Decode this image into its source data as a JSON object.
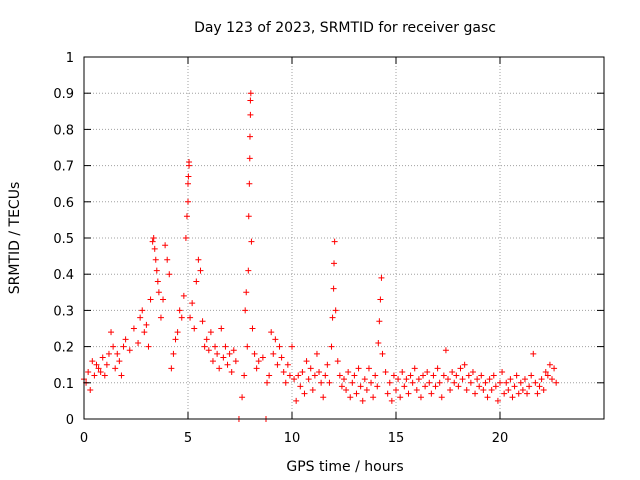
{
  "chart_data": {
    "type": "scatter",
    "title": "Day 123 of 2023, SRMTID for receiver gasc",
    "xlabel": "GPS time / hours",
    "ylabel": "SRMTID / TECUs",
    "xlim": [
      0,
      25
    ],
    "ylim": [
      0,
      1
    ],
    "x_ticks": [
      0,
      5,
      10,
      15,
      20
    ],
    "x_tick_labels": [
      "0",
      "5",
      "10",
      "15",
      "20"
    ],
    "y_ticks": [
      0,
      0.1,
      0.2,
      0.3,
      0.4,
      0.5,
      0.6,
      0.7,
      0.8,
      0.9,
      1
    ],
    "y_tick_labels": [
      "0",
      "0.1",
      "0.2",
      "0.3",
      "0.4",
      "0.5",
      "0.6",
      "0.7",
      "0.8",
      "0.9",
      "1"
    ],
    "grid": true,
    "marker": "+",
    "marker_color": "#ff0000",
    "series": [
      {
        "name": "SRMTID",
        "points": [
          [
            0.0,
            0.11
          ],
          [
            0.1,
            0.1
          ],
          [
            0.2,
            0.13
          ],
          [
            0.3,
            0.08
          ],
          [
            0.4,
            0.16
          ],
          [
            0.5,
            0.12
          ],
          [
            0.6,
            0.15
          ],
          [
            0.7,
            0.14
          ],
          [
            0.8,
            0.13
          ],
          [
            0.9,
            0.17
          ],
          [
            1.0,
            0.12
          ],
          [
            1.1,
            0.15
          ],
          [
            1.2,
            0.18
          ],
          [
            1.3,
            0.24
          ],
          [
            1.4,
            0.2
          ],
          [
            1.5,
            0.14
          ],
          [
            1.6,
            0.18
          ],
          [
            1.7,
            0.16
          ],
          [
            1.8,
            0.12
          ],
          [
            1.9,
            0.2
          ],
          [
            2.0,
            0.22
          ],
          [
            2.2,
            0.19
          ],
          [
            2.4,
            0.25
          ],
          [
            2.6,
            0.21
          ],
          [
            2.7,
            0.28
          ],
          [
            2.8,
            0.3
          ],
          [
            2.9,
            0.24
          ],
          [
            3.0,
            0.26
          ],
          [
            3.1,
            0.2
          ],
          [
            3.2,
            0.33
          ],
          [
            3.3,
            0.49
          ],
          [
            3.35,
            0.5
          ],
          [
            3.4,
            0.47
          ],
          [
            3.45,
            0.44
          ],
          [
            3.5,
            0.41
          ],
          [
            3.55,
            0.38
          ],
          [
            3.6,
            0.35
          ],
          [
            3.7,
            0.28
          ],
          [
            3.8,
            0.33
          ],
          [
            3.9,
            0.48
          ],
          [
            4.0,
            0.44
          ],
          [
            4.1,
            0.4
          ],
          [
            4.2,
            0.14
          ],
          [
            4.3,
            0.18
          ],
          [
            4.4,
            0.22
          ],
          [
            4.5,
            0.24
          ],
          [
            4.6,
            0.3
          ],
          [
            4.7,
            0.28
          ],
          [
            4.8,
            0.34
          ],
          [
            4.9,
            0.5
          ],
          [
            4.95,
            0.56
          ],
          [
            5.0,
            0.6
          ],
          [
            5.0,
            0.65
          ],
          [
            5.02,
            0.67
          ],
          [
            5.05,
            0.7
          ],
          [
            5.05,
            0.71
          ],
          [
            5.1,
            0.28
          ],
          [
            5.2,
            0.32
          ],
          [
            5.3,
            0.25
          ],
          [
            5.4,
            0.38
          ],
          [
            5.5,
            0.44
          ],
          [
            5.6,
            0.41
          ],
          [
            5.7,
            0.27
          ],
          [
            5.8,
            0.2
          ],
          [
            5.9,
            0.22
          ],
          [
            6.0,
            0.19
          ],
          [
            6.1,
            0.24
          ],
          [
            6.2,
            0.16
          ],
          [
            6.3,
            0.2
          ],
          [
            6.4,
            0.18
          ],
          [
            6.5,
            0.14
          ],
          [
            6.6,
            0.25
          ],
          [
            6.7,
            0.17
          ],
          [
            6.8,
            0.2
          ],
          [
            6.9,
            0.15
          ],
          [
            7.0,
            0.18
          ],
          [
            7.1,
            0.13
          ],
          [
            7.2,
            0.19
          ],
          [
            7.3,
            0.16
          ],
          [
            7.45,
            0.0
          ],
          [
            7.6,
            0.06
          ],
          [
            7.7,
            0.12
          ],
          [
            7.75,
            0.3
          ],
          [
            7.8,
            0.35
          ],
          [
            7.85,
            0.2
          ],
          [
            7.9,
            0.41
          ],
          [
            7.92,
            0.56
          ],
          [
            7.95,
            0.65
          ],
          [
            7.97,
            0.72
          ],
          [
            7.98,
            0.78
          ],
          [
            8.0,
            0.84
          ],
          [
            8.0,
            0.88
          ],
          [
            8.02,
            0.9
          ],
          [
            8.05,
            0.49
          ],
          [
            8.1,
            0.25
          ],
          [
            8.2,
            0.18
          ],
          [
            8.3,
            0.14
          ],
          [
            8.4,
            0.16
          ],
          [
            8.6,
            0.17
          ],
          [
            8.75,
            0.0
          ],
          [
            8.8,
            0.1
          ],
          [
            8.9,
            0.12
          ],
          [
            9.0,
            0.24
          ],
          [
            9.1,
            0.18
          ],
          [
            9.2,
            0.22
          ],
          [
            9.3,
            0.15
          ],
          [
            9.4,
            0.2
          ],
          [
            9.5,
            0.17
          ],
          [
            9.6,
            0.13
          ],
          [
            9.7,
            0.1
          ],
          [
            9.8,
            0.15
          ],
          [
            9.9,
            0.12
          ],
          [
            10.0,
            0.2
          ],
          [
            10.1,
            0.11
          ],
          [
            10.2,
            0.05
          ],
          [
            10.3,
            0.12
          ],
          [
            10.4,
            0.09
          ],
          [
            10.5,
            0.13
          ],
          [
            10.6,
            0.07
          ],
          [
            10.7,
            0.16
          ],
          [
            10.8,
            0.11
          ],
          [
            10.9,
            0.14
          ],
          [
            11.0,
            0.08
          ],
          [
            11.1,
            0.12
          ],
          [
            11.2,
            0.18
          ],
          [
            11.3,
            0.13
          ],
          [
            11.4,
            0.1
          ],
          [
            11.5,
            0.06
          ],
          [
            11.6,
            0.12
          ],
          [
            11.7,
            0.15
          ],
          [
            11.8,
            0.1
          ],
          [
            11.9,
            0.2
          ],
          [
            11.95,
            0.28
          ],
          [
            12.0,
            0.36
          ],
          [
            12.02,
            0.43
          ],
          [
            12.05,
            0.49
          ],
          [
            12.1,
            0.3
          ],
          [
            12.2,
            0.16
          ],
          [
            12.3,
            0.12
          ],
          [
            12.4,
            0.09
          ],
          [
            12.5,
            0.11
          ],
          [
            12.6,
            0.08
          ],
          [
            12.7,
            0.13
          ],
          [
            12.8,
            0.06
          ],
          [
            12.9,
            0.1
          ],
          [
            13.0,
            0.12
          ],
          [
            13.1,
            0.07
          ],
          [
            13.2,
            0.14
          ],
          [
            13.3,
            0.09
          ],
          [
            13.4,
            0.05
          ],
          [
            13.5,
            0.11
          ],
          [
            13.6,
            0.08
          ],
          [
            13.7,
            0.14
          ],
          [
            13.8,
            0.1
          ],
          [
            13.9,
            0.06
          ],
          [
            14.0,
            0.12
          ],
          [
            14.1,
            0.09
          ],
          [
            14.15,
            0.21
          ],
          [
            14.2,
            0.27
          ],
          [
            14.25,
            0.33
          ],
          [
            14.3,
            0.39
          ],
          [
            14.35,
            0.18
          ],
          [
            14.5,
            0.13
          ],
          [
            14.6,
            0.07
          ],
          [
            14.7,
            0.1
          ],
          [
            14.8,
            0.05
          ],
          [
            14.9,
            0.12
          ],
          [
            15.0,
            0.08
          ],
          [
            15.1,
            0.11
          ],
          [
            15.2,
            0.06
          ],
          [
            15.3,
            0.13
          ],
          [
            15.4,
            0.09
          ],
          [
            15.5,
            0.11
          ],
          [
            15.6,
            0.07
          ],
          [
            15.7,
            0.12
          ],
          [
            15.8,
            0.1
          ],
          [
            15.9,
            0.14
          ],
          [
            16.0,
            0.08
          ],
          [
            16.1,
            0.11
          ],
          [
            16.2,
            0.06
          ],
          [
            16.3,
            0.12
          ],
          [
            16.4,
            0.09
          ],
          [
            16.5,
            0.13
          ],
          [
            16.6,
            0.1
          ],
          [
            16.7,
            0.07
          ],
          [
            16.8,
            0.12
          ],
          [
            16.9,
            0.09
          ],
          [
            17.0,
            0.14
          ],
          [
            17.1,
            0.1
          ],
          [
            17.2,
            0.06
          ],
          [
            17.3,
            0.12
          ],
          [
            17.4,
            0.19
          ],
          [
            17.5,
            0.11
          ],
          [
            17.6,
            0.08
          ],
          [
            17.7,
            0.13
          ],
          [
            17.8,
            0.1
          ],
          [
            17.9,
            0.12
          ],
          [
            18.0,
            0.09
          ],
          [
            18.1,
            0.14
          ],
          [
            18.2,
            0.11
          ],
          [
            18.3,
            0.15
          ],
          [
            18.4,
            0.08
          ],
          [
            18.5,
            0.12
          ],
          [
            18.6,
            0.1
          ],
          [
            18.7,
            0.13
          ],
          [
            18.8,
            0.07
          ],
          [
            18.9,
            0.11
          ],
          [
            19.0,
            0.09
          ],
          [
            19.1,
            0.12
          ],
          [
            19.2,
            0.08
          ],
          [
            19.3,
            0.1
          ],
          [
            19.4,
            0.06
          ],
          [
            19.5,
            0.11
          ],
          [
            19.6,
            0.08
          ],
          [
            19.7,
            0.12
          ],
          [
            19.8,
            0.09
          ],
          [
            19.9,
            0.05
          ],
          [
            20.0,
            0.1
          ],
          [
            20.1,
            0.13
          ],
          [
            20.2,
            0.07
          ],
          [
            20.3,
            0.1
          ],
          [
            20.4,
            0.08
          ],
          [
            20.5,
            0.11
          ],
          [
            20.6,
            0.06
          ],
          [
            20.7,
            0.09
          ],
          [
            20.8,
            0.12
          ],
          [
            20.9,
            0.07
          ],
          [
            21.0,
            0.1
          ],
          [
            21.1,
            0.08
          ],
          [
            21.2,
            0.11
          ],
          [
            21.3,
            0.07
          ],
          [
            21.4,
            0.09
          ],
          [
            21.5,
            0.12
          ],
          [
            21.6,
            0.18
          ],
          [
            21.7,
            0.1
          ],
          [
            21.8,
            0.07
          ],
          [
            21.9,
            0.09
          ],
          [
            22.0,
            0.11
          ],
          [
            22.1,
            0.08
          ],
          [
            22.2,
            0.13
          ],
          [
            22.3,
            0.12
          ],
          [
            22.4,
            0.15
          ],
          [
            22.5,
            0.11
          ],
          [
            22.6,
            0.14
          ],
          [
            22.7,
            0.1
          ]
        ]
      }
    ]
  }
}
